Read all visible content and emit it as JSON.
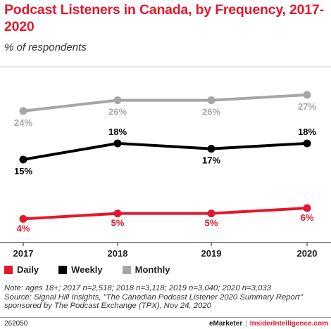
{
  "header": {
    "title": "Podcast Listeners in Canada, by Frequency, 2017-2020",
    "subtitle": "% of respondents"
  },
  "chart_data": {
    "type": "line",
    "x": [
      "2017",
      "2018",
      "2019",
      "2020"
    ],
    "series": [
      {
        "name": "Daily",
        "values": [
          4,
          5,
          5,
          6
        ],
        "labels": [
          "4%",
          "5%",
          "5%",
          "6%"
        ],
        "color": "#e3182d"
      },
      {
        "name": "Weekly",
        "values": [
          15,
          18,
          17,
          18
        ],
        "labels": [
          "15%",
          "18%",
          "17%",
          "18%"
        ],
        "color": "#000000"
      },
      {
        "name": "Monthly",
        "values": [
          24,
          26,
          26,
          27
        ],
        "labels": [
          "24%",
          "26%",
          "26%",
          "27%"
        ],
        "color": "#a6a6a6"
      }
    ],
    "legend_position": "bottom-left",
    "grid": false
  },
  "notes": {
    "line1": "Note: ages 18+; 2017 n=2,518; 2018 n=3,118; 2019 n=3,040; 2020 n=3,033",
    "line2": "Source: Signal Hill Insights, \"The Canadian Podcast Listener 2020 Summary Report\"",
    "line3": "sponsored by The Podcast Exchange (TPX), Nov 24, 2020"
  },
  "footer": {
    "chart_id": "262050",
    "brand1": "eMarketer",
    "separator": "|",
    "brand2": "InsiderIntelligence.com"
  }
}
